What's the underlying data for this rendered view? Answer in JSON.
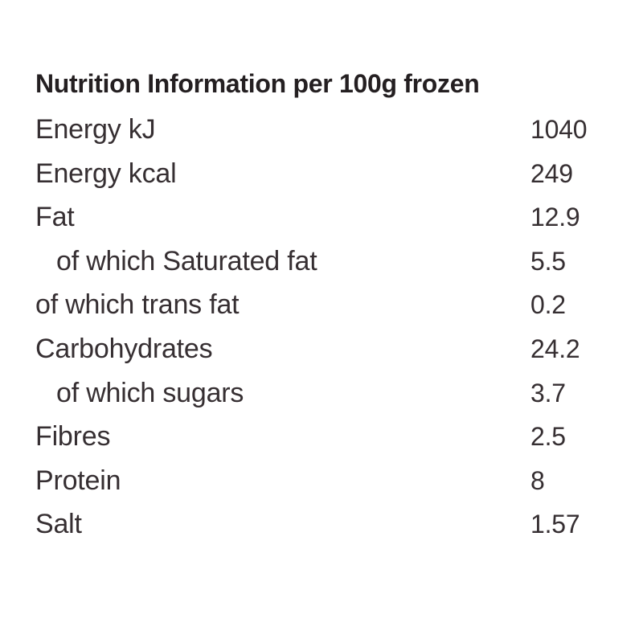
{
  "table": {
    "title": "Nutrition Information per 100g frozen",
    "rows": [
      {
        "label": "Energy kJ",
        "value": "1040",
        "indent": false
      },
      {
        "label": "Energy kcal",
        "value": "249",
        "indent": false
      },
      {
        "label": "Fat",
        "value": "12.9",
        "indent": false
      },
      {
        "label": "of which Saturated fat",
        "value": "5.5",
        "indent": true
      },
      {
        "label": "of which trans fat",
        "value": "0.2",
        "indent": false
      },
      {
        "label": "Carbohydrates",
        "value": "24.2",
        "indent": false
      },
      {
        "label": "of which sugars",
        "value": "3.7",
        "indent": true
      },
      {
        "label": "Fibres",
        "value": "2.5",
        "indent": false
      },
      {
        "label": "Protein",
        "value": "8",
        "indent": false
      },
      {
        "label": "Salt",
        "value": "1.57",
        "indent": false
      }
    ],
    "colors": {
      "background": "#ffffff",
      "title_text": "#241f21",
      "body_text": "#362f32"
    }
  }
}
